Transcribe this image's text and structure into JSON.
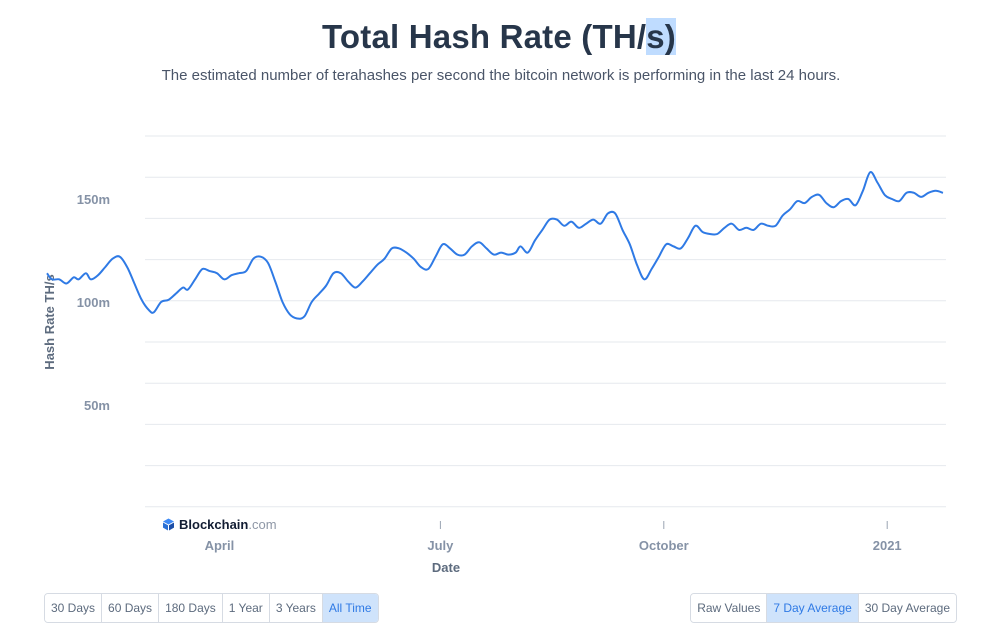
{
  "header": {
    "title_main": "Total Hash Rate (TH/",
    "title_sel": "s)",
    "subtitle": "The estimated number of terahashes per second the bitcoin network is performing in the last 24 hours."
  },
  "chart_data": {
    "type": "line",
    "title": "Total Hash Rate (TH/s)",
    "xlabel": "Date",
    "ylabel": "Hash Rate TH/s",
    "x_tick_labels": [
      "April",
      "July",
      "October",
      "2021"
    ],
    "y_tick_labels": [
      "50m",
      "100m",
      "150m"
    ],
    "y_ticks": [
      50000000,
      100000000,
      150000000
    ],
    "ylim": [
      0,
      180000000
    ],
    "grid": true,
    "series": [
      {
        "color": "#2f7ae5",
        "points": [
          [
            "2020-01-21",
            114000000
          ],
          [
            "2020-01-23",
            111000000
          ],
          [
            "2020-01-26",
            111000000
          ],
          [
            "2020-01-29",
            109000000
          ],
          [
            "2020-02-01",
            112000000
          ],
          [
            "2020-02-03",
            111000000
          ],
          [
            "2020-02-06",
            114000000
          ],
          [
            "2020-02-08",
            111000000
          ],
          [
            "2020-02-11",
            113000000
          ],
          [
            "2020-02-14",
            117000000
          ],
          [
            "2020-02-17",
            121000000
          ],
          [
            "2020-02-20",
            122000000
          ],
          [
            "2020-02-23",
            117000000
          ],
          [
            "2020-02-26",
            109000000
          ],
          [
            "2020-02-29",
            101000000
          ],
          [
            "2020-03-03",
            96000000
          ],
          [
            "2020-03-05",
            95000000
          ],
          [
            "2020-03-08",
            100000000
          ],
          [
            "2020-03-11",
            101000000
          ],
          [
            "2020-03-14",
            104000000
          ],
          [
            "2020-03-17",
            107000000
          ],
          [
            "2020-03-19",
            106000000
          ],
          [
            "2020-03-22",
            111000000
          ],
          [
            "2020-03-25",
            116000000
          ],
          [
            "2020-03-28",
            115000000
          ],
          [
            "2020-03-31",
            114000000
          ],
          [
            "2020-04-03",
            111000000
          ],
          [
            "2020-04-06",
            113000000
          ],
          [
            "2020-04-09",
            114000000
          ],
          [
            "2020-04-12",
            115000000
          ],
          [
            "2020-04-15",
            121000000
          ],
          [
            "2020-04-18",
            122000000
          ],
          [
            "2020-04-21",
            119000000
          ],
          [
            "2020-04-24",
            110000000
          ],
          [
            "2020-04-27",
            100000000
          ],
          [
            "2020-04-30",
            94000000
          ],
          [
            "2020-05-03",
            92000000
          ],
          [
            "2020-05-06",
            93000000
          ],
          [
            "2020-05-09",
            100000000
          ],
          [
            "2020-05-12",
            104000000
          ],
          [
            "2020-05-15",
            108000000
          ],
          [
            "2020-05-18",
            114000000
          ],
          [
            "2020-05-21",
            114000000
          ],
          [
            "2020-05-24",
            110000000
          ],
          [
            "2020-05-27",
            107000000
          ],
          [
            "2020-05-30",
            110000000
          ],
          [
            "2020-06-02",
            114000000
          ],
          [
            "2020-06-05",
            118000000
          ],
          [
            "2020-06-08",
            121000000
          ],
          [
            "2020-06-11",
            126000000
          ],
          [
            "2020-06-14",
            126000000
          ],
          [
            "2020-06-17",
            124000000
          ],
          [
            "2020-06-20",
            121000000
          ],
          [
            "2020-06-23",
            117000000
          ],
          [
            "2020-06-26",
            116000000
          ],
          [
            "2020-06-29",
            122000000
          ],
          [
            "2020-07-02",
            128000000
          ],
          [
            "2020-07-05",
            126000000
          ],
          [
            "2020-07-08",
            123000000
          ],
          [
            "2020-07-11",
            123000000
          ],
          [
            "2020-07-14",
            127000000
          ],
          [
            "2020-07-17",
            129000000
          ],
          [
            "2020-07-20",
            126000000
          ],
          [
            "2020-07-23",
            123000000
          ],
          [
            "2020-07-26",
            124000000
          ],
          [
            "2020-07-29",
            123000000
          ],
          [
            "2020-08-01",
            124000000
          ],
          [
            "2020-08-03",
            127000000
          ],
          [
            "2020-08-06",
            124000000
          ],
          [
            "2020-08-09",
            130000000
          ],
          [
            "2020-08-12",
            135000000
          ],
          [
            "2020-08-15",
            140000000
          ],
          [
            "2020-08-18",
            140000000
          ],
          [
            "2020-08-21",
            137000000
          ],
          [
            "2020-08-24",
            139000000
          ],
          [
            "2020-08-27",
            136000000
          ],
          [
            "2020-08-30",
            138000000
          ],
          [
            "2020-09-02",
            140000000
          ],
          [
            "2020-09-05",
            138000000
          ],
          [
            "2020-09-08",
            143000000
          ],
          [
            "2020-09-11",
            143000000
          ],
          [
            "2020-09-14",
            135000000
          ],
          [
            "2020-09-17",
            128000000
          ],
          [
            "2020-09-20",
            118000000
          ],
          [
            "2020-09-23",
            111000000
          ],
          [
            "2020-09-26",
            116000000
          ],
          [
            "2020-09-29",
            122000000
          ],
          [
            "2020-10-02",
            128000000
          ],
          [
            "2020-10-05",
            127000000
          ],
          [
            "2020-10-08",
            126000000
          ],
          [
            "2020-10-11",
            131000000
          ],
          [
            "2020-10-14",
            137000000
          ],
          [
            "2020-10-17",
            134000000
          ],
          [
            "2020-10-20",
            133000000
          ],
          [
            "2020-10-23",
            133000000
          ],
          [
            "2020-10-26",
            136000000
          ],
          [
            "2020-10-29",
            138000000
          ],
          [
            "2020-11-01",
            135000000
          ],
          [
            "2020-11-04",
            136000000
          ],
          [
            "2020-11-07",
            135000000
          ],
          [
            "2020-11-10",
            138000000
          ],
          [
            "2020-11-13",
            137000000
          ],
          [
            "2020-11-16",
            137000000
          ],
          [
            "2020-11-19",
            142000000
          ],
          [
            "2020-11-22",
            145000000
          ],
          [
            "2020-11-25",
            149000000
          ],
          [
            "2020-11-28",
            148000000
          ],
          [
            "2020-12-01",
            151000000
          ],
          [
            "2020-12-04",
            152000000
          ],
          [
            "2020-12-07",
            148000000
          ],
          [
            "2020-12-10",
            146000000
          ],
          [
            "2020-12-13",
            149000000
          ],
          [
            "2020-12-16",
            150000000
          ],
          [
            "2020-12-19",
            147000000
          ],
          [
            "2020-12-22",
            154000000
          ],
          [
            "2020-12-25",
            163000000
          ],
          [
            "2020-12-28",
            158000000
          ],
          [
            "2020-12-31",
            152000000
          ],
          [
            "2021-01-03",
            150000000
          ],
          [
            "2021-01-06",
            149000000
          ],
          [
            "2021-01-09",
            153000000
          ],
          [
            "2021-01-12",
            153000000
          ],
          [
            "2021-01-15",
            151000000
          ],
          [
            "2021-01-18",
            153000000
          ],
          [
            "2021-01-21",
            154000000
          ],
          [
            "2021-01-24",
            153000000
          ]
        ]
      }
    ]
  },
  "brand": {
    "name": "Blockchain",
    "suffix": ".com"
  },
  "controls": {
    "range": [
      {
        "label": "30 Days",
        "active": false
      },
      {
        "label": "60 Days",
        "active": false
      },
      {
        "label": "180 Days",
        "active": false
      },
      {
        "label": "1 Year",
        "active": false
      },
      {
        "label": "3 Years",
        "active": false
      },
      {
        "label": "All Time",
        "active": true
      }
    ],
    "mode": [
      {
        "label": "Raw Values",
        "active": false
      },
      {
        "label": "7 Day Average",
        "active": true
      },
      {
        "label": "30 Day Average",
        "active": false
      }
    ]
  },
  "colors": {
    "line": "#2f7ae5",
    "grid": "#e6e9ee",
    "active_button_bg": "#cfe3fb",
    "selection": "#bfdcff"
  }
}
